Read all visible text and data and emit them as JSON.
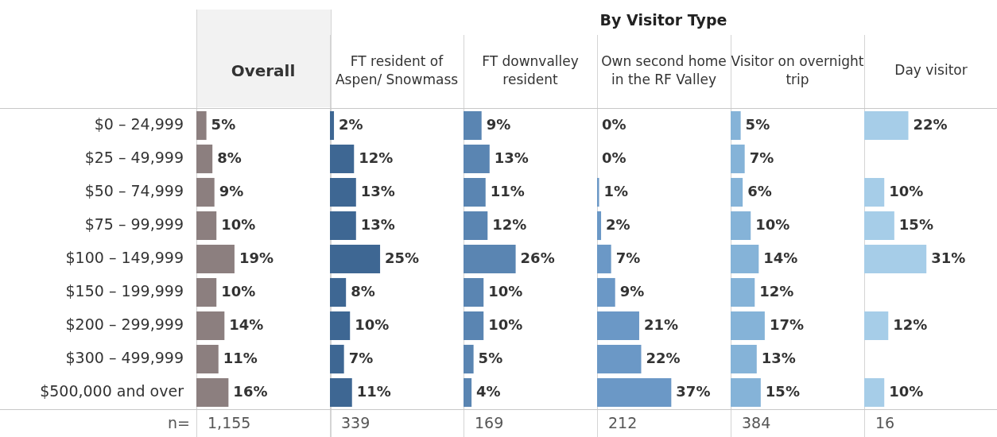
{
  "chart_data": [
    {
      "type": "bar",
      "orientation": "horizontal",
      "title": "Overall",
      "categories": [
        "$0 – 24,999",
        "$25 – 49,999",
        "$50 – 74,999",
        "$75 – 99,999",
        "$100 – 149,999",
        "$150 – 199,999",
        "$200 – 299,999",
        "$300 – 499,999",
        "$500,000 and over"
      ],
      "values": [
        5,
        8,
        9,
        10,
        19,
        10,
        14,
        11,
        16
      ],
      "value_labels": [
        "5%",
        "8%",
        "9%",
        "10%",
        "19%",
        "10%",
        "14%",
        "11%",
        "16%"
      ],
      "color": "#8c7f7f",
      "tick_labels": "y",
      "annotations": [
        "n=",
        "1,155"
      ]
    },
    {
      "type": "bar",
      "orientation": "horizontal",
      "title": "FT resident of Aspen/ Snowmass",
      "values": [
        2,
        12,
        13,
        13,
        25,
        8,
        10,
        7,
        11
      ],
      "value_labels": [
        "2%",
        "12%",
        "13%",
        "13%",
        "25%",
        "8%",
        "10%",
        "7%",
        "11%"
      ],
      "color": "#3e6793",
      "tick_labels": false,
      "annotations": [
        "339"
      ]
    },
    {
      "type": "bar",
      "orientation": "horizontal",
      "title": "FT downvalley resident",
      "values": [
        9,
        13,
        11,
        12,
        26,
        10,
        10,
        5,
        4
      ],
      "value_labels": [
        "9%",
        "13%",
        "11%",
        "12%",
        "26%",
        "10%",
        "10%",
        "5%",
        "4%"
      ],
      "color": "#5a85b2",
      "tick_labels": false,
      "annotations": [
        "169"
      ]
    },
    {
      "type": "bar",
      "orientation": "horizontal",
      "title": "Own second home in the RF Valley",
      "values": [
        0,
        0,
        1,
        2,
        7,
        9,
        21,
        22,
        37
      ],
      "value_labels": [
        "0%",
        "0%",
        "1%",
        "2%",
        "7%",
        "9%",
        "21%",
        "22%",
        "37%"
      ],
      "color": "#6b98c6",
      "tick_labels": false,
      "annotations": [
        "212"
      ]
    },
    {
      "type": "bar",
      "orientation": "horizontal",
      "title": "Visitor on overnight trip",
      "values": [
        5,
        7,
        6,
        10,
        14,
        12,
        17,
        13,
        15
      ],
      "value_labels": [
        "5%",
        "7%",
        "6%",
        "10%",
        "14%",
        "12%",
        "17%",
        "13%",
        "15%"
      ],
      "color": "#85b3d8",
      "tick_labels": false,
      "annotations": [
        "384"
      ]
    },
    {
      "type": "bar",
      "orientation": "horizontal",
      "title": "Day visitor",
      "values": [
        22,
        null,
        10,
        15,
        31,
        null,
        12,
        null,
        10
      ],
      "value_labels": [
        "22%",
        null,
        "10%",
        "15%",
        "31%",
        null,
        "12%",
        null,
        "10%"
      ],
      "color": "#a6cde8",
      "tick_labels": false,
      "annotations": [
        "16"
      ]
    },
    {
      "type": "other",
      "title": "By Visitor Type"
    }
  ]
}
